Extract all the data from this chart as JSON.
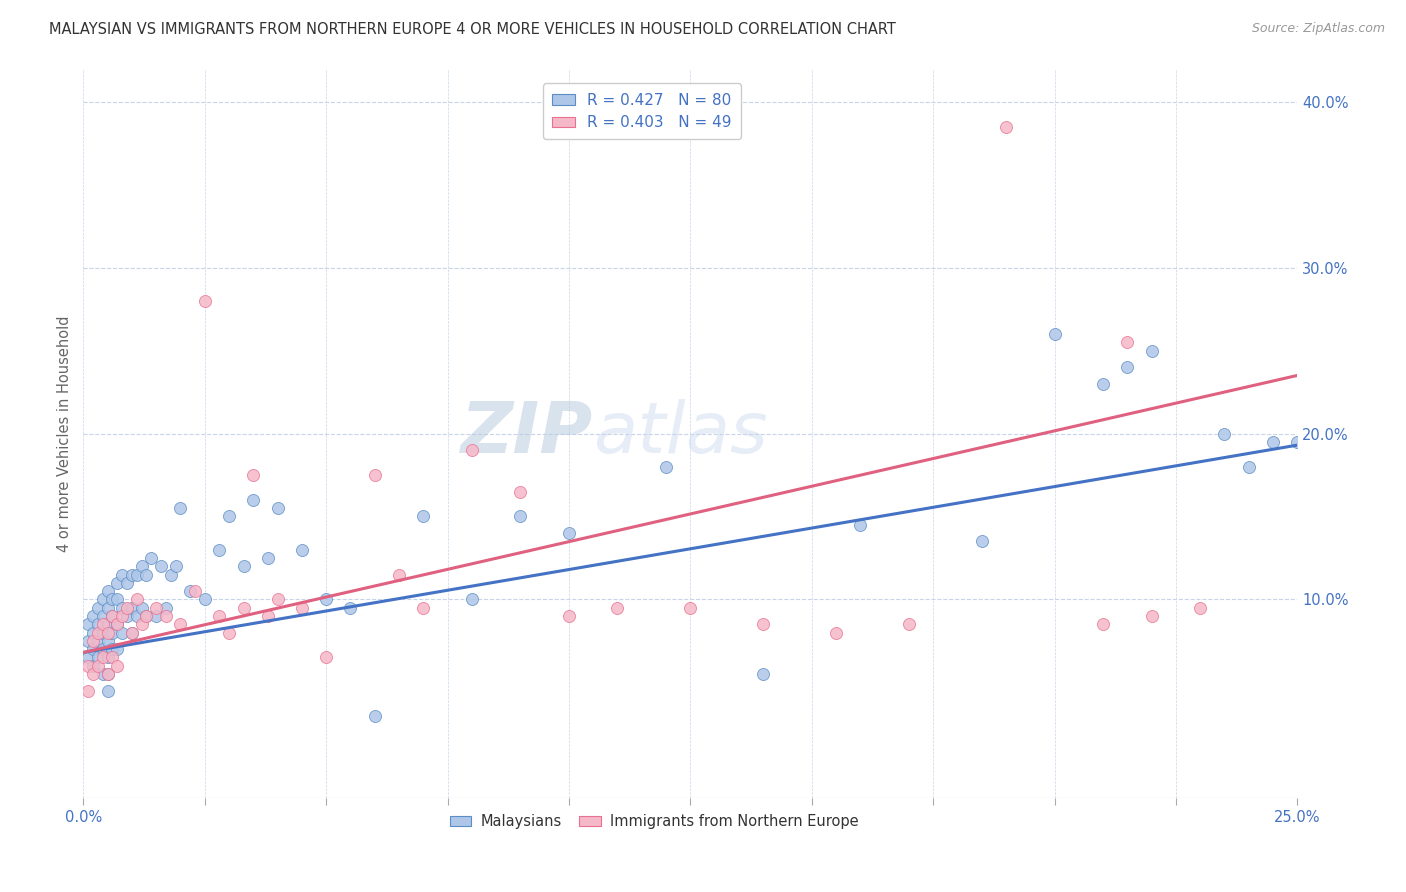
{
  "title": "MALAYSIAN VS IMMIGRANTS FROM NORTHERN EUROPE 4 OR MORE VEHICLES IN HOUSEHOLD CORRELATION CHART",
  "source": "Source: ZipAtlas.com",
  "ylabel": "4 or more Vehicles in Household",
  "legend1_R": "0.427",
  "legend1_N": "80",
  "legend2_R": "0.403",
  "legend2_N": "49",
  "watermark_zip": "ZIP",
  "watermark_atlas": "atlas",
  "blue_color": "#aec6e8",
  "pink_color": "#f5b8c8",
  "blue_edge_color": "#5b8ec4",
  "pink_edge_color": "#e87090",
  "blue_line_color": "#4472c4",
  "pink_line_color": "#e06080",
  "xlim": [
    0.0,
    0.25
  ],
  "ylim": [
    -0.02,
    0.42
  ],
  "blue_line_x0": 0.0,
  "blue_line_y0": 0.068,
  "blue_line_x1": 0.25,
  "blue_line_y1": 0.193,
  "pink_line_x0": 0.0,
  "pink_line_y0": 0.068,
  "pink_line_x1": 0.25,
  "pink_line_y1": 0.235,
  "blue_x": [
    0.001,
    0.001,
    0.001,
    0.002,
    0.002,
    0.002,
    0.002,
    0.003,
    0.003,
    0.003,
    0.003,
    0.004,
    0.004,
    0.004,
    0.004,
    0.004,
    0.005,
    0.005,
    0.005,
    0.005,
    0.005,
    0.005,
    0.005,
    0.006,
    0.006,
    0.006,
    0.006,
    0.007,
    0.007,
    0.007,
    0.007,
    0.008,
    0.008,
    0.008,
    0.009,
    0.009,
    0.01,
    0.01,
    0.01,
    0.011,
    0.011,
    0.012,
    0.012,
    0.013,
    0.013,
    0.014,
    0.015,
    0.016,
    0.017,
    0.018,
    0.019,
    0.02,
    0.022,
    0.025,
    0.028,
    0.03,
    0.033,
    0.035,
    0.038,
    0.04,
    0.045,
    0.05,
    0.055,
    0.06,
    0.07,
    0.08,
    0.09,
    0.1,
    0.12,
    0.14,
    0.16,
    0.185,
    0.2,
    0.21,
    0.215,
    0.22,
    0.235,
    0.24,
    0.245,
    0.25
  ],
  "blue_y": [
    0.085,
    0.075,
    0.065,
    0.09,
    0.08,
    0.07,
    0.06,
    0.095,
    0.085,
    0.075,
    0.065,
    0.1,
    0.09,
    0.08,
    0.07,
    0.055,
    0.105,
    0.095,
    0.085,
    0.075,
    0.065,
    0.055,
    0.045,
    0.1,
    0.09,
    0.08,
    0.07,
    0.11,
    0.1,
    0.085,
    0.07,
    0.115,
    0.095,
    0.08,
    0.11,
    0.09,
    0.115,
    0.095,
    0.08,
    0.115,
    0.09,
    0.12,
    0.095,
    0.115,
    0.09,
    0.125,
    0.09,
    0.12,
    0.095,
    0.115,
    0.12,
    0.155,
    0.105,
    0.1,
    0.13,
    0.15,
    0.12,
    0.16,
    0.125,
    0.155,
    0.13,
    0.1,
    0.095,
    0.03,
    0.15,
    0.1,
    0.15,
    0.14,
    0.18,
    0.055,
    0.145,
    0.135,
    0.26,
    0.23,
    0.24,
    0.25,
    0.2,
    0.18,
    0.195,
    0.195
  ],
  "pink_x": [
    0.001,
    0.001,
    0.002,
    0.002,
    0.003,
    0.003,
    0.004,
    0.004,
    0.005,
    0.005,
    0.006,
    0.006,
    0.007,
    0.007,
    0.008,
    0.009,
    0.01,
    0.011,
    0.012,
    0.013,
    0.015,
    0.017,
    0.02,
    0.023,
    0.025,
    0.028,
    0.03,
    0.033,
    0.035,
    0.038,
    0.04,
    0.045,
    0.05,
    0.06,
    0.065,
    0.07,
    0.08,
    0.09,
    0.1,
    0.11,
    0.125,
    0.14,
    0.155,
    0.17,
    0.19,
    0.21,
    0.215,
    0.22,
    0.23
  ],
  "pink_y": [
    0.06,
    0.045,
    0.075,
    0.055,
    0.08,
    0.06,
    0.085,
    0.065,
    0.08,
    0.055,
    0.09,
    0.065,
    0.085,
    0.06,
    0.09,
    0.095,
    0.08,
    0.1,
    0.085,
    0.09,
    0.095,
    0.09,
    0.085,
    0.105,
    0.28,
    0.09,
    0.08,
    0.095,
    0.175,
    0.09,
    0.1,
    0.095,
    0.065,
    0.175,
    0.115,
    0.095,
    0.19,
    0.165,
    0.09,
    0.095,
    0.095,
    0.085,
    0.08,
    0.085,
    0.385,
    0.085,
    0.255,
    0.09,
    0.095
  ],
  "background_color": "#ffffff",
  "grid_color": "#c8d4e8",
  "title_fontsize": 10.5,
  "source_fontsize": 9,
  "axis_label_color": "#4472c4",
  "ylabel_color": "#666666",
  "scatter_size": 75,
  "scatter_alpha": 0.85,
  "scatter_linewidth": 0.6
}
